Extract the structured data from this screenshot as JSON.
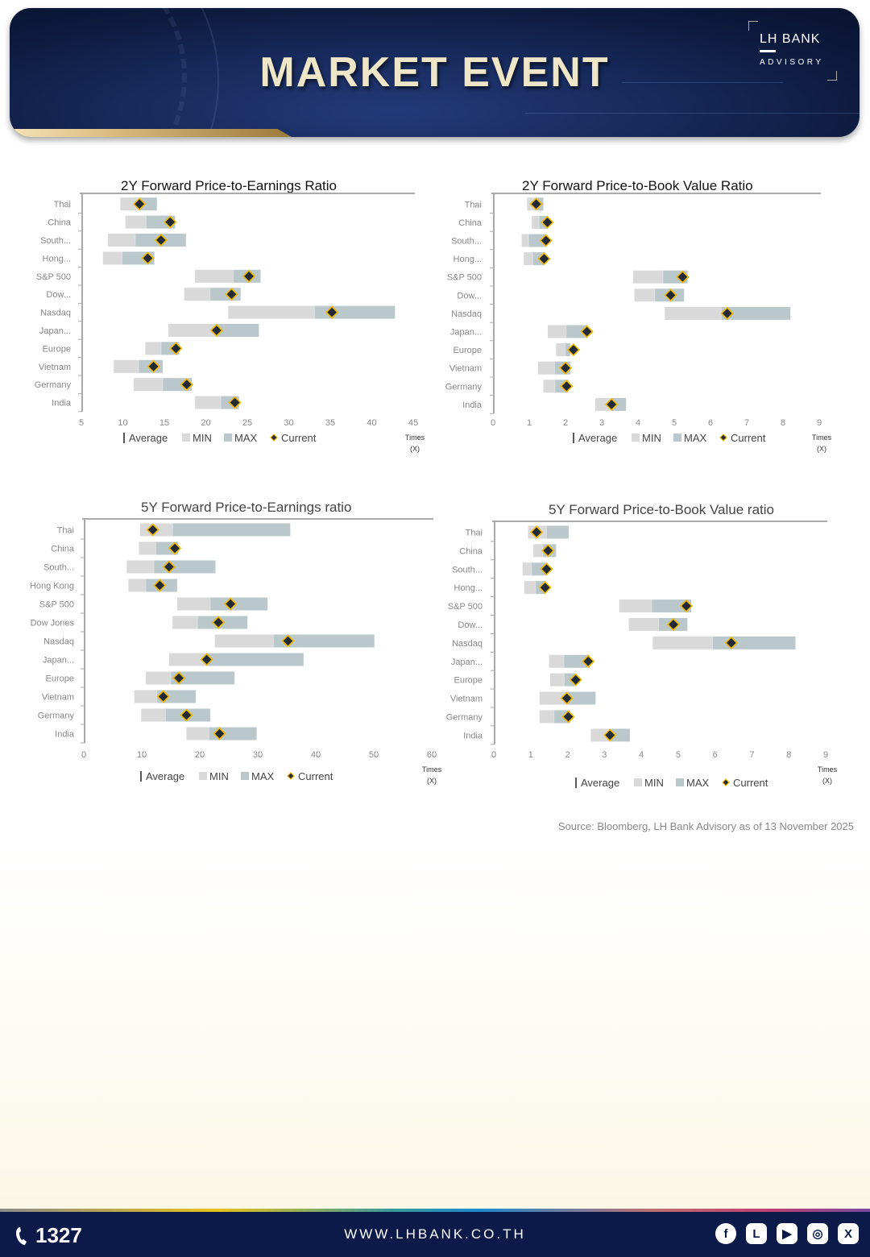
{
  "header": {
    "title": "MARKET EVENT",
    "logo_brand": "LH BANK",
    "logo_sub": "ADVISORY"
  },
  "legend": {
    "average": "Average",
    "min": "MIN",
    "max": "MAX",
    "current": "Current"
  },
  "colors": {
    "min": "#d9d9d9",
    "max": "#bac8cc",
    "marker_fill": "#222b35",
    "marker_edge": "#f1b800",
    "axis": "#aaaaaa"
  },
  "chart_data": [
    {
      "id": "pe2y",
      "type": "bar",
      "title": "2Y Forward Price-to-Earnings Ratio",
      "xlabel": "Times (X)",
      "unit_line1": "Times",
      "unit_line2": "(X)",
      "xlim": [
        5,
        45
      ],
      "xticks": [
        "5",
        "10",
        "15",
        "20",
        "25",
        "30",
        "35",
        "40",
        "45"
      ],
      "categories": [
        "Thai",
        "China",
        "South...",
        "Hong...",
        "S&P 500",
        "Dow...",
        "Nasdaq",
        "Japan...",
        "Europe",
        "Vietnam",
        "Germany",
        "India"
      ],
      "series": [
        {
          "name": "MIN",
          "values": [
            9.7,
            10.3,
            8.2,
            7.6,
            18.7,
            17.4,
            22.7,
            15.5,
            12.7,
            8.9,
            11.3,
            18.7
          ]
        },
        {
          "name": "Average",
          "values": [
            12.0,
            12.8,
            11.5,
            9.9,
            23.3,
            20.5,
            33.1,
            21.3,
            14.6,
            11.9,
            14.8,
            21.8
          ]
        },
        {
          "name": "MAX",
          "values": [
            14.1,
            16.3,
            17.6,
            13.8,
            26.6,
            24.2,
            42.8,
            26.4,
            16.8,
            14.8,
            18.3,
            24.0
          ]
        },
        {
          "name": "Current",
          "values": [
            12.0,
            15.7,
            14.6,
            13.0,
            25.2,
            23.1,
            35.2,
            21.3,
            16.4,
            13.7,
            17.7,
            23.5
          ]
        }
      ]
    },
    {
      "id": "pbv2y",
      "type": "bar",
      "title": "2Y Forward Price-to-Book Value Ratio",
      "xlabel": "Times (X)",
      "unit_line1": "Times",
      "unit_line2": "(X)",
      "xlim": [
        0,
        9
      ],
      "xticks": [
        "0",
        "1",
        "2",
        "3",
        "4",
        "5",
        "6",
        "7",
        "8",
        "9"
      ],
      "categories": [
        "Thai",
        "China",
        "South...",
        "Hong...",
        "S&P 500",
        "Dow...",
        "Nasdaq",
        "Japan...",
        "Europe",
        "Vietnam",
        "Germany",
        "India"
      ],
      "series": [
        {
          "name": "MIN",
          "values": [
            0.94,
            1.07,
            0.79,
            0.85,
            3.86,
            3.9,
            4.74,
            1.51,
            1.74,
            1.24,
            1.39,
            2.82
          ]
        },
        {
          "name": "Average",
          "values": [
            1.2,
            1.27,
            0.98,
            1.1,
            4.69,
            4.46,
            6.3,
            2.02,
            1.99,
            1.7,
            1.71,
            3.27
          ]
        },
        {
          "name": "MAX",
          "values": [
            1.39,
            1.5,
            1.47,
            1.42,
            5.37,
            5.27,
            8.2,
            2.61,
            2.13,
            2.13,
            2.08,
            3.67
          ]
        },
        {
          "name": "Current",
          "values": [
            1.19,
            1.5,
            1.46,
            1.41,
            5.23,
            4.9,
            6.46,
            2.59,
            2.22,
            2.0,
            2.03,
            3.27
          ]
        }
      ]
    },
    {
      "id": "pe5y",
      "type": "bar",
      "title": "5Y Forward Price-to-Earnings ratio",
      "xlabel": "Times (X)",
      "unit_line1": "Times",
      "unit_line2": "(X)",
      "xlim": [
        0,
        60
      ],
      "xticks": [
        "0",
        "10",
        "20",
        "30",
        "40",
        "50",
        "60"
      ],
      "categories": [
        "Thai",
        "China",
        "South...",
        "Hong Kong",
        "S&P 500",
        "Dow Jones",
        "Nasdaq",
        "Japan...",
        "Europe",
        "Vietnam",
        "Germany",
        "India"
      ],
      "series": [
        {
          "name": "MIN",
          "values": [
            9.7,
            9.5,
            7.4,
            7.7,
            16.1,
            15.3,
            22.6,
            14.7,
            10.7,
            8.7,
            9.9,
            17.7
          ]
        },
        {
          "name": "Average",
          "values": [
            15.3,
            12.4,
            12.1,
            10.7,
            21.8,
            19.6,
            32.7,
            21.2,
            15.0,
            12.6,
            14.1,
            21.6
          ]
        },
        {
          "name": "MAX",
          "values": [
            35.6,
            16.3,
            22.7,
            16.1,
            31.7,
            28.2,
            50.1,
            37.9,
            26.0,
            19.3,
            21.8,
            29.8
          ]
        },
        {
          "name": "Current",
          "values": [
            11.9,
            15.7,
            14.7,
            13.1,
            25.3,
            23.2,
            35.2,
            21.2,
            16.4,
            13.7,
            17.7,
            23.4
          ]
        }
      ]
    },
    {
      "id": "pbv5y",
      "type": "bar",
      "title": "5Y Forward Price-to-Book Value ratio",
      "xlabel": "Times (X)",
      "unit_line1": "Times",
      "unit_line2": "(X)",
      "xlim": [
        0,
        9
      ],
      "xticks": [
        "0",
        "1",
        "2",
        "3",
        "4",
        "5",
        "6",
        "7",
        "8",
        "9"
      ],
      "categories": [
        "Thai",
        "China",
        "South...",
        "Hong...",
        "S&P 500",
        "Dow...",
        "Nasdaq",
        "Japan...",
        "Europe",
        "Vietnam",
        "Germany",
        "India"
      ],
      "series": [
        {
          "name": "MIN",
          "values": [
            0.93,
            1.07,
            0.78,
            0.83,
            3.4,
            3.66,
            4.31,
            1.5,
            1.53,
            1.24,
            1.24,
            2.63
          ]
        },
        {
          "name": "Average",
          "values": [
            1.43,
            1.33,
            1.02,
            1.13,
            4.28,
            4.47,
            5.93,
            1.9,
            1.91,
            2.0,
            1.63,
            3.15
          ]
        },
        {
          "name": "MAX",
          "values": [
            2.03,
            1.69,
            1.45,
            1.41,
            5.35,
            5.25,
            8.18,
            2.6,
            2.2,
            2.76,
            2.07,
            3.69
          ]
        },
        {
          "name": "Current",
          "values": [
            1.16,
            1.47,
            1.43,
            1.39,
            5.22,
            4.87,
            6.44,
            2.56,
            2.22,
            1.98,
            2.02,
            3.15
          ]
        }
      ]
    }
  ],
  "source": "Source: Bloomberg,  LH Bank Advisory  as of 13 November 2025",
  "footer": {
    "phone": "1327",
    "url": "WWW.LHBANK.CO.TH",
    "socials": [
      {
        "icon": "facebook-icon",
        "glyph": "f"
      },
      {
        "icon": "line-icon",
        "glyph": "L"
      },
      {
        "icon": "youtube-icon",
        "glyph": "▶"
      },
      {
        "icon": "instagram-icon",
        "glyph": "◎"
      },
      {
        "icon": "x-icon",
        "glyph": "X"
      }
    ]
  }
}
